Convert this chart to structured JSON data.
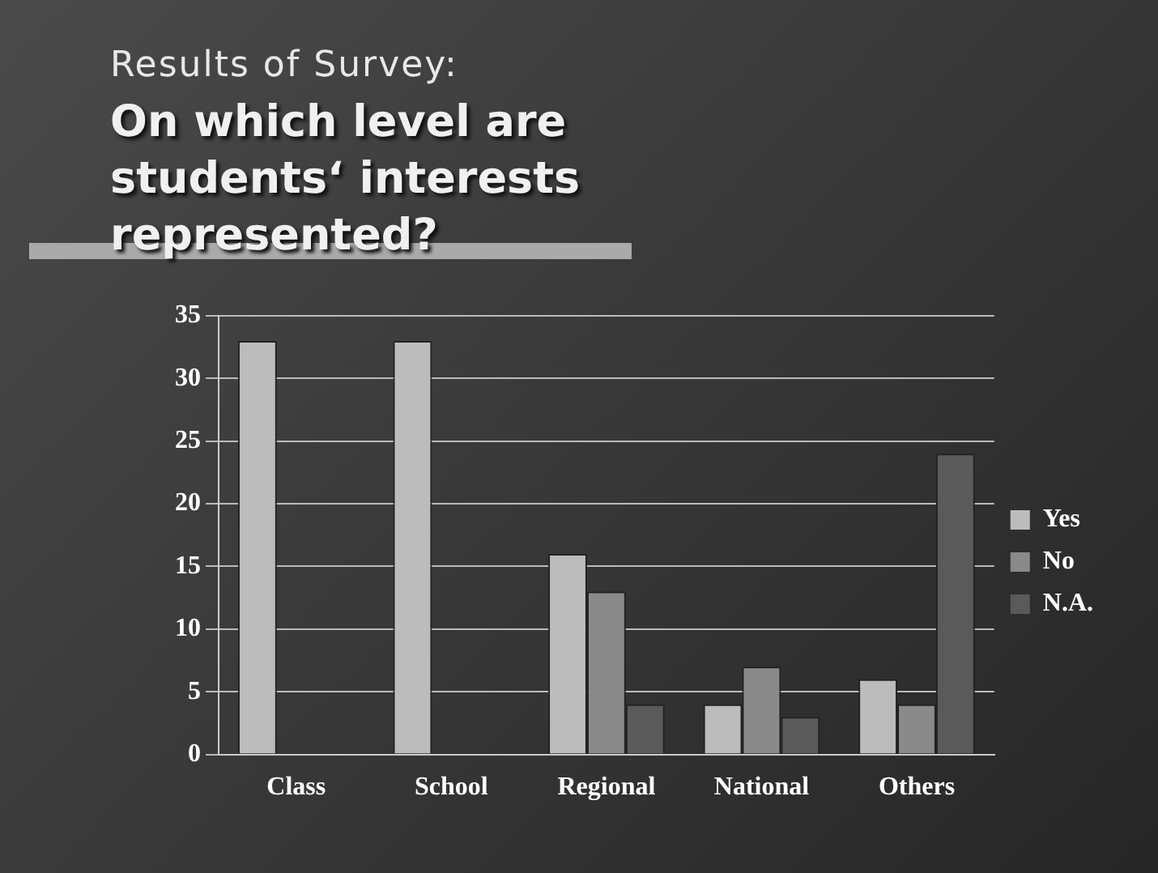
{
  "chart_data": {
    "type": "bar",
    "subtitle": "Results of Survey:",
    "title": "On which level are students‘ interests represented?",
    "categories": [
      "Class",
      "School",
      "Regional",
      "National",
      "Others"
    ],
    "series": [
      {
        "name": "Yes",
        "color": "#bcbcbc",
        "values": [
          33,
          33,
          16,
          4,
          6
        ]
      },
      {
        "name": "No",
        "color": "#8a8a8a",
        "values": [
          0,
          0,
          13,
          7,
          4
        ]
      },
      {
        "name": "N.A.",
        "color": "#5a5a5a",
        "values": [
          0,
          0,
          4,
          3,
          24
        ]
      }
    ],
    "ylim": [
      0,
      35
    ],
    "yticks": [
      0,
      5,
      10,
      15,
      20,
      25,
      30,
      35
    ],
    "grid": "y",
    "legend": "right"
  }
}
